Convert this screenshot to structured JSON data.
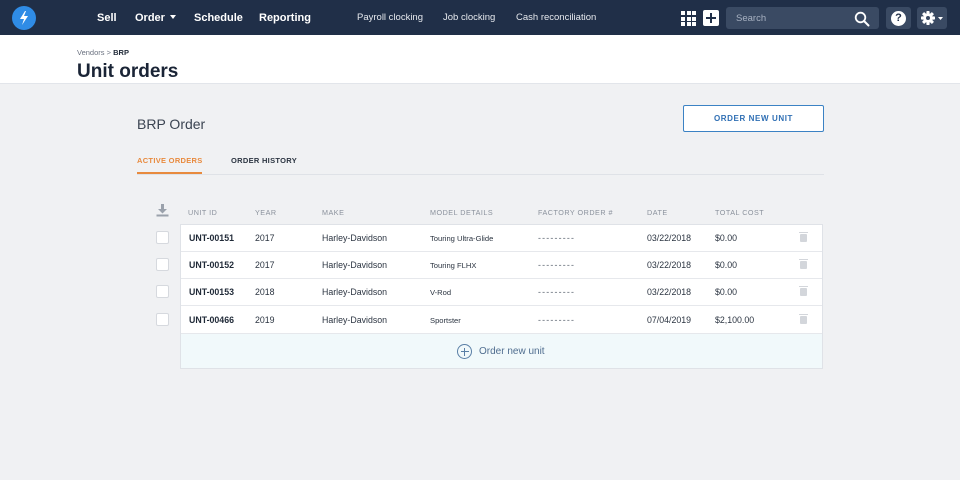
{
  "nav": {
    "main": [
      {
        "label": "Sell"
      },
      {
        "label": "Order"
      },
      {
        "label": "Schedule"
      },
      {
        "label": "Reporting"
      }
    ],
    "links": [
      {
        "label": "Payroll clocking"
      },
      {
        "label": "Job clocking"
      },
      {
        "label": "Cash reconciliation"
      }
    ],
    "search_placeholder": "Search",
    "help_label": "?"
  },
  "breadcrumb": {
    "root": "Vendors",
    "separator": ">",
    "current": "BRP"
  },
  "page_title": "Unit orders",
  "section": {
    "title": "BRP Order",
    "order_button": "ORDER NEW UNIT"
  },
  "tabs": [
    {
      "label": "ACTIVE ORDERS",
      "active": true
    },
    {
      "label": "ORDER HISTORY",
      "active": false
    }
  ],
  "table": {
    "columns": [
      "UNIT ID",
      "YEAR",
      "MAKE",
      "MODEL DETAILS",
      "FACTORY ORDER #",
      "DATE",
      "TOTAL COST"
    ],
    "rows": [
      {
        "unit_id": "UNT-00151",
        "year": "2017",
        "make": "Harley-Davidson",
        "model": "Touring Ultra-Glide",
        "factory_order": "---------",
        "date": "03/22/2018",
        "cost": "$0.00"
      },
      {
        "unit_id": "UNT-00152",
        "year": "2017",
        "make": "Harley-Davidson",
        "model": "Touring FLHX",
        "factory_order": "---------",
        "date": "03/22/2018",
        "cost": "$0.00"
      },
      {
        "unit_id": "UNT-00153",
        "year": "2018",
        "make": "Harley-Davidson",
        "model": "V-Rod",
        "factory_order": "---------",
        "date": "03/22/2018",
        "cost": "$0.00"
      },
      {
        "unit_id": "UNT-00466",
        "year": "2019",
        "make": "Harley-Davidson",
        "model": "Sportster",
        "factory_order": "---------",
        "date": "07/04/2019",
        "cost": "$2,100.00"
      }
    ],
    "add_row_label": "Order new unit"
  },
  "colors": {
    "nav_bg": "#202f48",
    "accent_orange": "#e88a3e",
    "button_blue": "#2f6fb4",
    "page_bg": "#f0f1f3"
  }
}
